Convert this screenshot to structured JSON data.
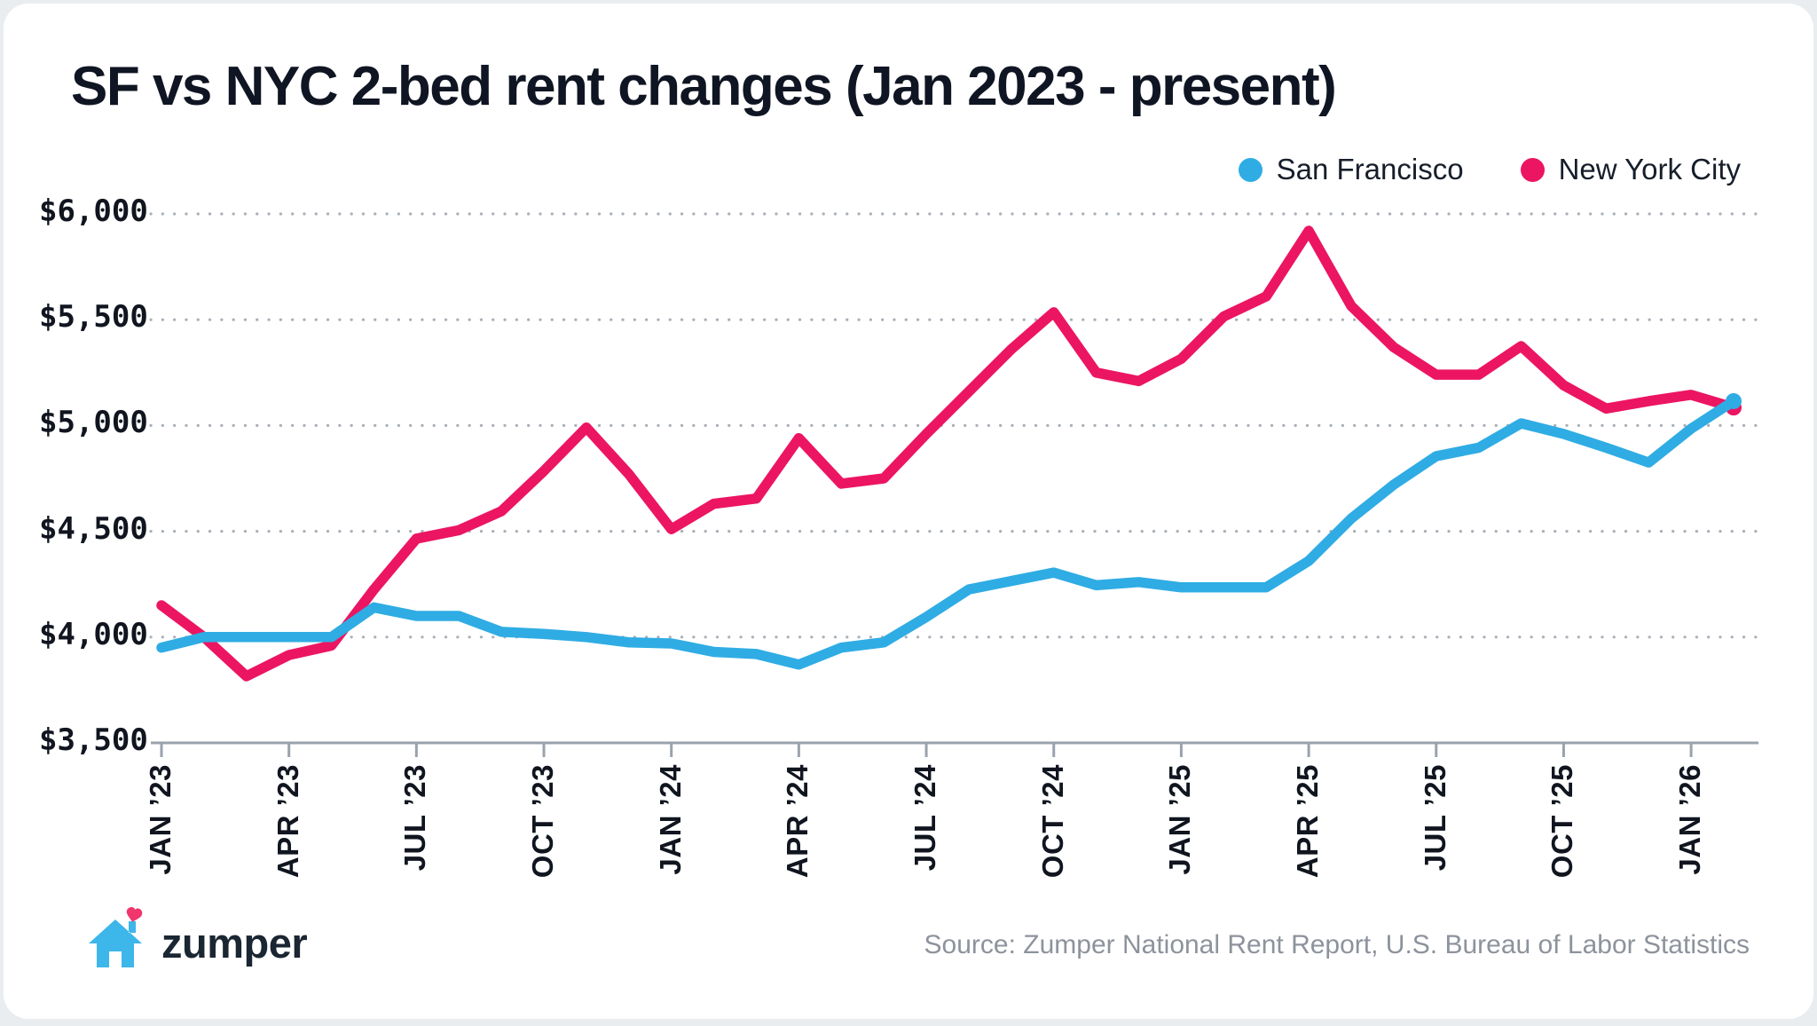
{
  "page": {
    "background": "#e9edf0",
    "card_background": "#ffffff"
  },
  "header": {
    "title": "SF vs NYC 2-bed rent changes (Jan 2023 - present)"
  },
  "legend": {
    "items": [
      {
        "label": "San Francisco",
        "color": "#2FACE4"
      },
      {
        "label": "New York City",
        "color": "#EC1562"
      }
    ]
  },
  "footer": {
    "logo_text": "zumper",
    "source": "Source: Zumper National Rent Report, U.S. Bureau of Labor Statistics"
  },
  "chart_data": {
    "type": "line",
    "title": "SF vs NYC 2-bed rent changes (Jan 2023 - present)",
    "xlabel": "",
    "ylabel": "",
    "ylim": [
      3500,
      6000
    ],
    "grid": "dotted-horizontal",
    "legend_position": "top-right",
    "x_months": [
      "Jan '23",
      "Feb '23",
      "Mar '23",
      "Apr '23",
      "May '23",
      "Jun '23",
      "Jul '23",
      "Aug '23",
      "Sep '23",
      "Oct '23",
      "Nov '23",
      "Dec '23",
      "Jan '24",
      "Feb '24",
      "Mar '24",
      "Apr '24",
      "May '24",
      "Jun '24",
      "Jul '24",
      "Aug '24",
      "Sep '24",
      "Oct '24",
      "Nov '24",
      "Dec '24",
      "Jan '25",
      "Feb '25",
      "Mar '25",
      "Apr '25",
      "May '25",
      "Jun '25",
      "Jul '25",
      "Aug '25",
      "Sep '25",
      "Oct '25",
      "Nov '25",
      "Dec '25",
      "Jan '26",
      "Feb '26"
    ],
    "x_tick_labels": [
      "JAN ’23",
      "APR ’23",
      "JUL ’23",
      "OCT ’23",
      "JAN ’24",
      "APR ’24",
      "JUL ’24",
      "OCT ’24",
      "JAN ’25",
      "APR ’25",
      "JUL ’25",
      "OCT ’25",
      "JAN ’26"
    ],
    "y_ticks": {
      "values": [
        3500,
        4000,
        4500,
        5000,
        5500,
        6000
      ],
      "labels": [
        "$3,500",
        "$4,000",
        "$4,500",
        "$5,000",
        "$5,500",
        "$6,000"
      ]
    },
    "series": [
      {
        "name": "New York City",
        "color": "#EC1562",
        "values": [
          4150,
          4000,
          3815,
          3915,
          3960,
          4225,
          4465,
          4505,
          4595,
          4785,
          4990,
          4770,
          4510,
          4630,
          4655,
          4940,
          4725,
          4750,
          4960,
          5160,
          5360,
          5535,
          5250,
          5210,
          5315,
          5515,
          5610,
          5920,
          5565,
          5370,
          5240,
          5240,
          5375,
          5190,
          5080,
          5115,
          5145,
          5085
        ]
      },
      {
        "name": "San Francisco",
        "color": "#2FACE4",
        "values": [
          3950,
          4000,
          4000,
          4000,
          4000,
          4140,
          4100,
          4100,
          4025,
          4015,
          4000,
          3975,
          3970,
          3930,
          3920,
          3870,
          3950,
          3975,
          4095,
          4225,
          4265,
          4305,
          4245,
          4260,
          4235,
          4235,
          4235,
          4360,
          4560,
          4720,
          4855,
          4895,
          5010,
          4960,
          4895,
          4825,
          4985,
          5115
        ]
      }
    ],
    "style": {
      "line_width": 11.5,
      "grid_color": "#aab0b8",
      "axis_color": "#9aa2ac",
      "end_dot_radius": 9
    }
  }
}
